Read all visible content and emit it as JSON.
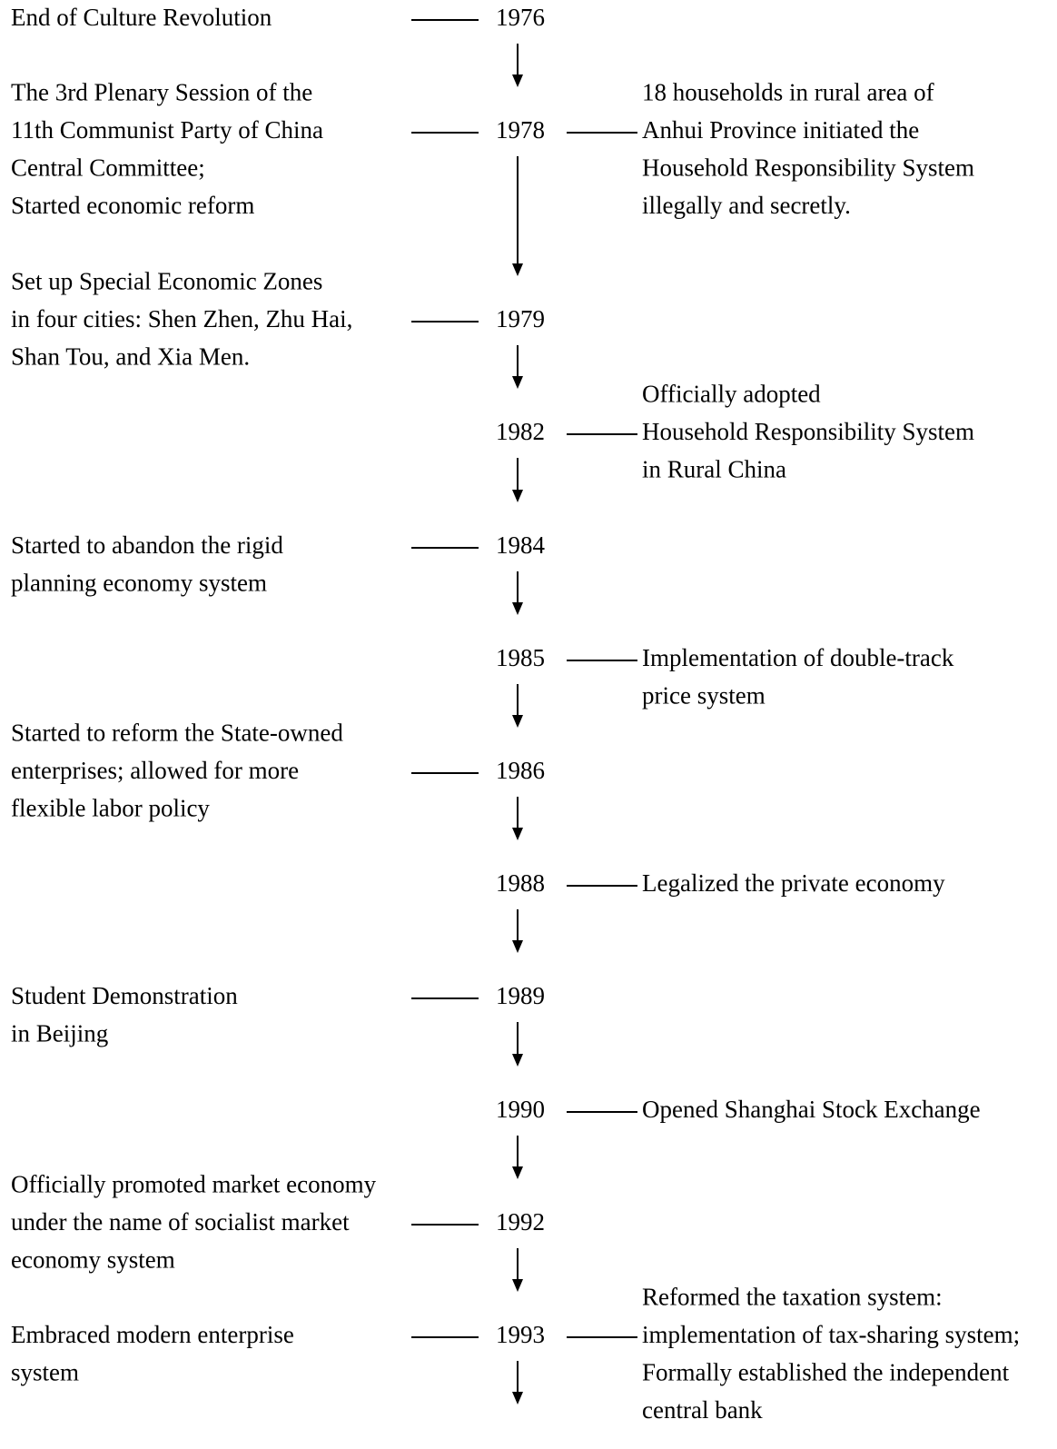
{
  "events": [
    {
      "year": "1976",
      "left": [
        "End of Culture Revolution"
      ]
    },
    {
      "year": "1978",
      "left": [
        "The 3rd Plenary Session of the",
        "11th Communist Party of China",
        "Central Committee;",
        "Started economic reform"
      ],
      "right": [
        "18 households in rural area of",
        "Anhui Province initiated the",
        "Household Responsibility System",
        "illegally and secretly."
      ]
    },
    {
      "year": "1979",
      "left": [
        "Set up Special Economic Zones",
        "in four cities: Shen Zhen, Zhu Hai,",
        "Shan Tou, and Xia Men."
      ]
    },
    {
      "year": "1982",
      "right": [
        "Officially adopted",
        "Household Responsibility System",
        "in Rural China"
      ]
    },
    {
      "year": "1984",
      "left": [
        "Started to abandon the rigid",
        "planning economy system"
      ]
    },
    {
      "year": "1985",
      "right": [
        "Implementation of double-track",
        "price system"
      ]
    },
    {
      "year": "1986",
      "left": [
        "Started to reform the State-owned",
        "enterprises; allowed for more",
        "flexible labor policy"
      ]
    },
    {
      "year": "1988",
      "right": [
        "Legalized the private economy"
      ]
    },
    {
      "year": "1989",
      "left": [
        "Student Demonstration",
        "in Beijing"
      ]
    },
    {
      "year": "1990",
      "right": [
        "Opened Shanghai Stock Exchange"
      ]
    },
    {
      "year": "1992",
      "left": [
        "Officially promoted market economy",
        "under the name of socialist market",
        "economy system"
      ]
    },
    {
      "year": "1993",
      "left": [
        "Embraced modern enterprise",
        "system"
      ],
      "right": [
        "Reformed the taxation system:",
        "implementation of tax-sharing system;",
        "Formally established the independent",
        "central bank"
      ]
    }
  ]
}
